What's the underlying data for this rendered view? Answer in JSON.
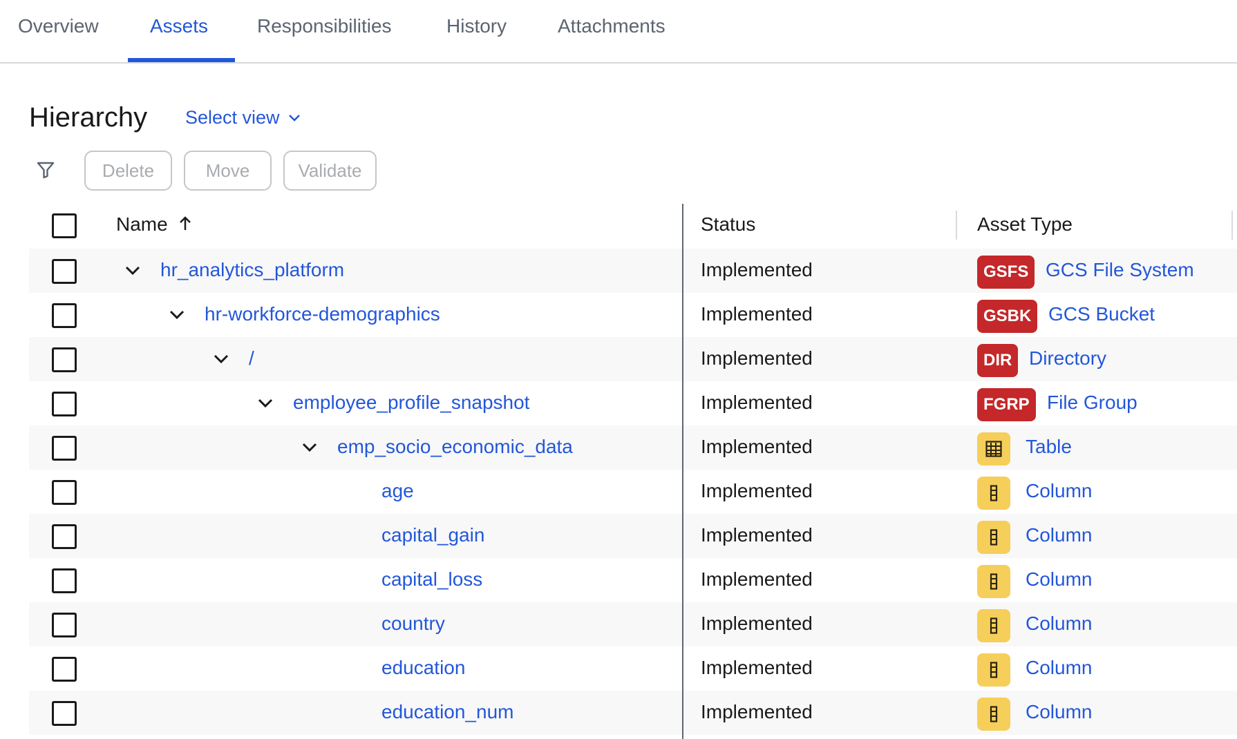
{
  "tabs": [
    {
      "label": "Overview"
    },
    {
      "label": "Assets",
      "active": true
    },
    {
      "label": "Responsibilities"
    },
    {
      "label": "History"
    },
    {
      "label": "Attachments"
    }
  ],
  "section": {
    "title": "Hierarchy",
    "select_view": "Select view"
  },
  "toolbar": {
    "filter_icon": "filter-icon",
    "delete": "Delete",
    "move": "Move",
    "validate": "Validate"
  },
  "columns": {
    "name": "Name",
    "sort": "ascending",
    "status": "Status",
    "asset_type": "Asset Type"
  },
  "colors": {
    "accent": "#2357d9",
    "red_badge": "#c4282a",
    "yellow_badge": "#f6ce5a"
  },
  "rows": [
    {
      "name": "hr_analytics_platform",
      "level": 0,
      "expanded": true,
      "status": "Implemented",
      "badge": "GSFS",
      "badge_color": "red",
      "asset_type": "GCS File System"
    },
    {
      "name": "hr-workforce-demographics",
      "level": 1,
      "expanded": true,
      "status": "Implemented",
      "badge": "GSBK",
      "badge_color": "red",
      "asset_type": "GCS Bucket"
    },
    {
      "name": "/",
      "level": 2,
      "expanded": true,
      "status": "Implemented",
      "badge": "DIR",
      "badge_color": "red",
      "asset_type": "Directory"
    },
    {
      "name": "employee_profile_snapshot",
      "level": 3,
      "expanded": true,
      "status": "Implemented",
      "badge": "FGRP",
      "badge_color": "red",
      "asset_type": "File Group"
    },
    {
      "name": "emp_socio_economic_data",
      "level": 4,
      "expanded": true,
      "status": "Implemented",
      "badge_icon": "table-icon",
      "badge_color": "yellow",
      "asset_type": "Table"
    },
    {
      "name": "age",
      "level": 5,
      "status": "Implemented",
      "badge_icon": "column-icon",
      "badge_color": "yellow",
      "asset_type": "Column"
    },
    {
      "name": "capital_gain",
      "level": 5,
      "status": "Implemented",
      "badge_icon": "column-icon",
      "badge_color": "yellow",
      "asset_type": "Column"
    },
    {
      "name": "capital_loss",
      "level": 5,
      "status": "Implemented",
      "badge_icon": "column-icon",
      "badge_color": "yellow",
      "asset_type": "Column"
    },
    {
      "name": "country",
      "level": 5,
      "status": "Implemented",
      "badge_icon": "column-icon",
      "badge_color": "yellow",
      "asset_type": "Column"
    },
    {
      "name": "education",
      "level": 5,
      "status": "Implemented",
      "badge_icon": "column-icon",
      "badge_color": "yellow",
      "asset_type": "Column"
    },
    {
      "name": "education_num",
      "level": 5,
      "status": "Implemented",
      "badge_icon": "column-icon",
      "badge_color": "yellow",
      "asset_type": "Column"
    }
  ]
}
